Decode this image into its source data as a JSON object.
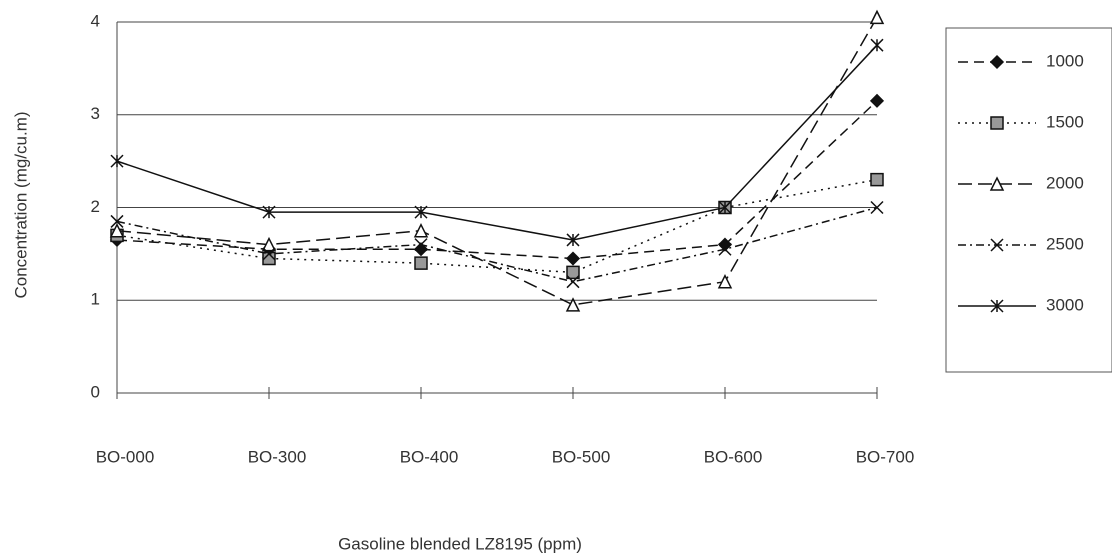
{
  "chart_data": {
    "type": "line",
    "x_label": "Gasoline blended LZ8195  (ppm)",
    "y_label": "Concentration (mg/cu.m)",
    "categories": [
      "BO-000",
      "BO-300",
      "BO-400",
      "BO-500",
      "BO-600",
      "BO-700"
    ],
    "ylim": [
      0,
      4
    ],
    "yticks": [
      0,
      1,
      2,
      3,
      4
    ],
    "grid": true,
    "legend": "right",
    "series": [
      {
        "name": "1000",
        "color": "#111111",
        "marker": "diamond",
        "dash": "10,6",
        "values": [
          1.65,
          1.55,
          1.55,
          1.45,
          1.6,
          3.15
        ]
      },
      {
        "name": "1500",
        "color": "#111111",
        "marker": "square",
        "dash": "2,5",
        "values": [
          1.7,
          1.45,
          1.4,
          1.3,
          2.0,
          2.3
        ]
      },
      {
        "name": "2000",
        "color": "#111111",
        "marker": "triangle",
        "dash": "14,6",
        "values": [
          1.75,
          1.6,
          1.75,
          0.95,
          1.2,
          4.05
        ]
      },
      {
        "name": "2500",
        "color": "#111111",
        "marker": "cross",
        "dash": "8,4,2,4",
        "values": [
          1.85,
          1.5,
          1.6,
          1.2,
          1.55,
          2.0
        ]
      },
      {
        "name": "3000",
        "color": "#111111",
        "marker": "asterisk",
        "dash": "none",
        "values": [
          2.5,
          1.95,
          1.95,
          1.65,
          2.0,
          3.75
        ]
      }
    ]
  }
}
